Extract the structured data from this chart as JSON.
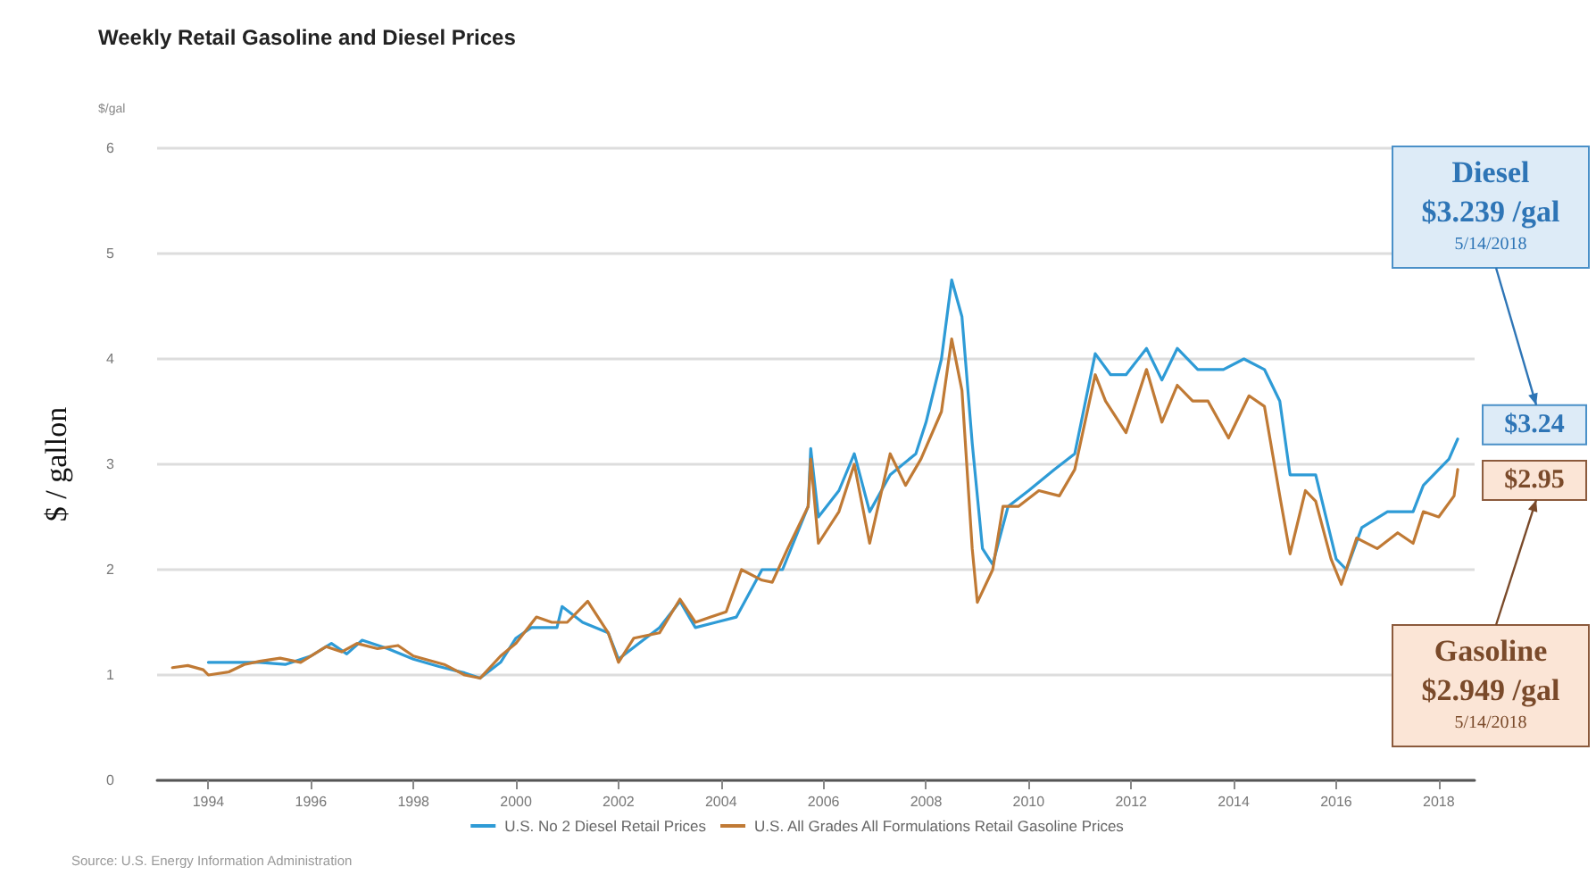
{
  "chart_data": {
    "type": "line",
    "title": "Weekly Retail Gasoline and Diesel Prices",
    "ylabel": "$ / gallon",
    "xlim": [
      1993,
      2018.7
    ],
    "xticks": [
      1994,
      1996,
      1998,
      2000,
      2002,
      2004,
      2006,
      2008,
      2010,
      2012,
      2014,
      2016,
      2018
    ],
    "ylim": [
      0,
      6
    ],
    "yticks": [
      0,
      1,
      2,
      3,
      4,
      5,
      6
    ],
    "grid": "y",
    "legend": "bottom",
    "marker": "none",
    "line_style": "solid",
    "series": [
      {
        "name": "U.S. No 2 Diesel Retail Prices",
        "color": "#2e9bd6",
        "x": [
          1994.0,
          1994.5,
          1995.0,
          1995.5,
          1996.0,
          1996.4,
          1996.7,
          1997.0,
          1997.5,
          1998.0,
          1998.5,
          1999.0,
          1999.3,
          1999.7,
          2000.0,
          2000.3,
          2000.8,
          2000.9,
          2001.3,
          2001.8,
          2002.0,
          2002.4,
          2002.8,
          2003.2,
          2003.5,
          2003.9,
          2004.3,
          2004.8,
          2005.2,
          2005.7,
          2005.75,
          2005.9,
          2006.3,
          2006.6,
          2006.9,
          2007.3,
          2007.8,
          2008.0,
          2008.3,
          2008.5,
          2008.7,
          2008.9,
          2009.1,
          2009.3,
          2009.6,
          2010.0,
          2010.5,
          2010.9,
          2011.3,
          2011.6,
          2011.9,
          2012.3,
          2012.6,
          2012.9,
          2013.3,
          2013.8,
          2014.2,
          2014.6,
          2014.9,
          2015.1,
          2015.4,
          2015.6,
          2016.0,
          2016.2,
          2016.5,
          2017.0,
          2017.5,
          2017.7,
          2018.0,
          2018.2,
          2018.37
        ],
        "values": [
          1.12,
          1.12,
          1.12,
          1.1,
          1.18,
          1.3,
          1.2,
          1.33,
          1.25,
          1.15,
          1.08,
          1.02,
          0.97,
          1.12,
          1.35,
          1.45,
          1.45,
          1.65,
          1.5,
          1.4,
          1.15,
          1.3,
          1.45,
          1.7,
          1.45,
          1.5,
          1.55,
          2.0,
          2.0,
          2.6,
          3.15,
          2.5,
          2.75,
          3.1,
          2.55,
          2.9,
          3.1,
          3.4,
          4.0,
          4.75,
          4.4,
          3.2,
          2.2,
          2.05,
          2.6,
          2.75,
          2.95,
          3.1,
          4.05,
          3.85,
          3.85,
          4.1,
          3.8,
          4.1,
          3.9,
          3.9,
          4.0,
          3.9,
          3.6,
          2.9,
          2.9,
          2.9,
          2.1,
          2.0,
          2.4,
          2.55,
          2.55,
          2.8,
          2.95,
          3.05,
          3.24
        ]
      },
      {
        "name": "U.S. All Grades All Formulations Retail Gasoline Prices",
        "color": "#c07a35",
        "x": [
          1993.3,
          1993.6,
          1993.9,
          1994.0,
          1994.4,
          1994.7,
          1995.0,
          1995.4,
          1995.8,
          1996.3,
          1996.6,
          1996.9,
          1997.3,
          1997.7,
          1998.0,
          1998.6,
          1999.0,
          1999.3,
          1999.7,
          2000.0,
          2000.4,
          2000.7,
          2001.0,
          2001.4,
          2001.8,
          2002.0,
          2002.3,
          2002.8,
          2003.2,
          2003.5,
          2003.8,
          2004.1,
          2004.4,
          2004.8,
          2005.0,
          2005.3,
          2005.7,
          2005.75,
          2005.9,
          2006.3,
          2006.6,
          2006.9,
          2007.3,
          2007.6,
          2007.9,
          2008.3,
          2008.5,
          2008.7,
          2008.9,
          2009.0,
          2009.3,
          2009.5,
          2009.8,
          2010.2,
          2010.6,
          2010.9,
          2011.3,
          2011.5,
          2011.9,
          2012.3,
          2012.6,
          2012.9,
          2013.2,
          2013.5,
          2013.9,
          2014.3,
          2014.6,
          2014.9,
          2015.1,
          2015.4,
          2015.6,
          2015.9,
          2016.1,
          2016.4,
          2016.8,
          2017.2,
          2017.5,
          2017.7,
          2018.0,
          2018.3,
          2018.37
        ],
        "values": [
          1.07,
          1.09,
          1.05,
          1.0,
          1.03,
          1.1,
          1.13,
          1.16,
          1.12,
          1.27,
          1.22,
          1.3,
          1.25,
          1.28,
          1.18,
          1.1,
          1.0,
          0.97,
          1.18,
          1.3,
          1.55,
          1.5,
          1.5,
          1.7,
          1.4,
          1.12,
          1.35,
          1.4,
          1.72,
          1.5,
          1.55,
          1.6,
          2.0,
          1.9,
          1.88,
          2.2,
          2.6,
          3.05,
          2.25,
          2.55,
          3.0,
          2.25,
          3.1,
          2.8,
          3.05,
          3.5,
          4.19,
          3.7,
          2.2,
          1.69,
          2.0,
          2.6,
          2.6,
          2.75,
          2.7,
          2.95,
          3.85,
          3.6,
          3.3,
          3.9,
          3.4,
          3.75,
          3.6,
          3.6,
          3.25,
          3.65,
          3.55,
          2.7,
          2.15,
          2.75,
          2.65,
          2.1,
          1.86,
          2.3,
          2.2,
          2.35,
          2.25,
          2.55,
          2.5,
          2.7,
          2.95
        ]
      }
    ],
    "annotations": [
      "$/gal",
      {
        "text": "$3.24",
        "x": 2018.37,
        "y": 3.24
      },
      {
        "text": "$2.95",
        "x": 2018.37,
        "y": 2.95
      },
      "Diesel\n$3.239 /gal\n5/14/2018",
      "Gasoline\n$2.949 /gal\n5/14/2018",
      "Source: U.S. Energy Information Administration"
    ]
  }
}
